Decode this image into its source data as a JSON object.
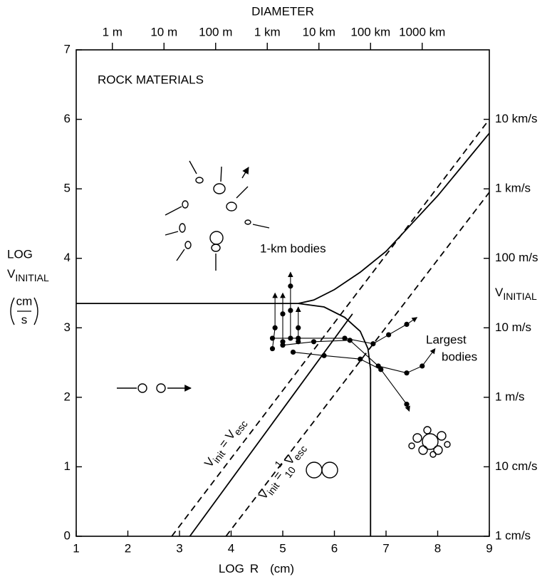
{
  "chart_data": {
    "type": "line",
    "title": "ROCK MATERIALS",
    "xlabel": {
      "log": "LOG",
      "r": "R",
      "unit": "(cm)"
    },
    "ylabel": {
      "log": "LOG",
      "v": "V",
      "sub": "INITIAL",
      "num": "cm",
      "den": "s"
    },
    "x2label": "DIAMETER",
    "y2label": {
      "v": "V",
      "sub": "INITIAL"
    },
    "xlim": [
      1,
      9
    ],
    "ylim": [
      0,
      7
    ],
    "y2lim": [
      0,
      7
    ],
    "xticks": [
      1,
      2,
      3,
      4,
      5,
      6,
      7,
      8,
      9
    ],
    "yticks": [
      0,
      1,
      2,
      3,
      4,
      5,
      6,
      7
    ],
    "x2ticks": [
      {
        "value": 1.7,
        "label": "1 m"
      },
      {
        "value": 2.7,
        "label": "10 m"
      },
      {
        "value": 3.7,
        "label": "100 m"
      },
      {
        "value": 4.7,
        "label": "1 km"
      },
      {
        "value": 5.7,
        "label": "10 km"
      },
      {
        "value": 6.7,
        "label": "100 km"
      },
      {
        "value": 7.7,
        "label": "1000 km"
      }
    ],
    "y2ticks": [
      {
        "value": 0,
        "label": "1 cm/s"
      },
      {
        "value": 1,
        "label": "10 cm/s"
      },
      {
        "value": 2,
        "label": "1 m/s"
      },
      {
        "value": 3,
        "label": "10 m/s"
      },
      {
        "value": 4,
        "label": "100 m/s"
      },
      {
        "value": 5,
        "label": "1 km/s"
      },
      {
        "value": 6,
        "label": "10 km/s"
      }
    ],
    "annotations": {
      "one_km": "1-km bodies",
      "largest": [
        "Largest",
        "bodies"
      ],
      "eq1": [
        "V",
        "init",
        " = V",
        "esc"
      ],
      "eq2": [
        "V",
        "init",
        " = ",
        "1",
        "10",
        "V",
        "esc"
      ]
    },
    "color": "#000000",
    "curves": [
      {
        "style": "solid",
        "x": [
          1,
          5.3,
          5.6,
          6,
          6.5,
          7,
          7.5,
          8,
          8.5,
          9
        ],
        "y": [
          3.35,
          3.35,
          3.4,
          3.55,
          3.8,
          4.1,
          4.5,
          4.9,
          5.35,
          5.8
        ]
      },
      {
        "style": "solid",
        "x": [
          5.3,
          5.8,
          6.2,
          6.5,
          6.65,
          6.7,
          6.7
        ],
        "y": [
          3.35,
          3.3,
          3.15,
          2.95,
          2.7,
          2.4,
          0
        ]
      },
      {
        "style": "solid",
        "x": [
          3.2,
          6.35
        ],
        "y": [
          0,
          3.2
        ]
      },
      {
        "style": "dashed",
        "x": [
          2.85,
          9
        ],
        "y": [
          0,
          6.0
        ]
      },
      {
        "style": "dashed",
        "x": [
          3.9,
          9
        ],
        "y": [
          0,
          4.95
        ]
      }
    ],
    "trajectories": [
      {
        "x": [
          4.8,
          4.85,
          4.85
        ],
        "y": [
          2.7,
          3.0,
          3.5
        ]
      },
      {
        "x": [
          5.0,
          5.0,
          5.0
        ],
        "y": [
          2.8,
          3.2,
          3.5
        ]
      },
      {
        "x": [
          5.15,
          5.15,
          5.15,
          5.15
        ],
        "y": [
          2.85,
          3.25,
          3.6,
          3.8
        ]
      },
      {
        "x": [
          5.3,
          5.3,
          5.3
        ],
        "y": [
          2.8,
          3.0,
          3.3
        ]
      },
      {
        "x": [
          4.8,
          5.3,
          6.2,
          6.75,
          7.05,
          7.4,
          7.6
        ],
        "y": [
          2.85,
          2.85,
          2.85,
          2.77,
          2.9,
          3.05,
          3.15
        ]
      },
      {
        "x": [
          5.0,
          5.6,
          6.3,
          6.85,
          7.4,
          7.7,
          7.95
        ],
        "y": [
          2.75,
          2.8,
          2.82,
          2.45,
          2.35,
          2.45,
          2.7
        ]
      },
      {
        "x": [
          5.2,
          5.8,
          6.5,
          6.9,
          7.4,
          7.45
        ],
        "y": [
          2.65,
          2.6,
          2.55,
          2.4,
          1.9,
          1.8
        ]
      }
    ]
  }
}
